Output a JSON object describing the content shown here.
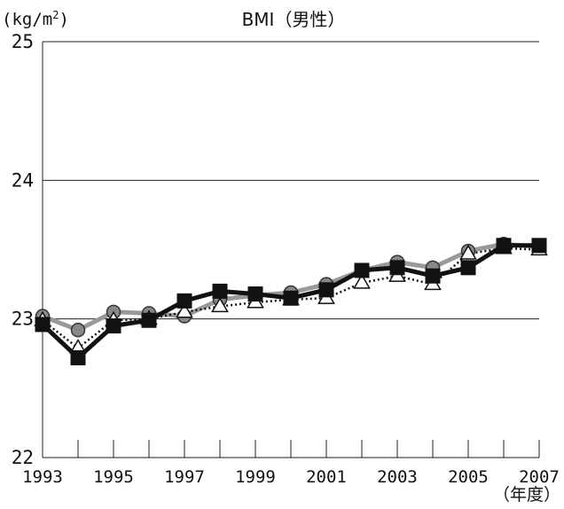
{
  "chart_data": {
    "type": "line",
    "title": "BMI（男性）",
    "ylabel": "(kg/m2)",
    "ylabel_base": "(kg/m",
    "ylabel_sup": "2",
    "ylabel_close": ")",
    "xlabel": "（年度）",
    "x": [
      1993,
      1994,
      1995,
      1996,
      1997,
      1998,
      1999,
      2000,
      2001,
      2002,
      2003,
      2004,
      2005,
      2006,
      2007
    ],
    "x_tick_labels": [
      "1993",
      "1995",
      "1997",
      "1999",
      "2001",
      "2003",
      "2005",
      "2007"
    ],
    "y_tick_labels": [
      "22",
      "23",
      "24",
      "25"
    ],
    "ylim": [
      22,
      25
    ],
    "grid": "horizontal",
    "series": [
      {
        "marker": "circle",
        "line_color": "#999999",
        "marker_fill": "#888888",
        "values": [
          23.02,
          22.92,
          23.05,
          23.04,
          23.02,
          23.14,
          23.17,
          23.19,
          23.25,
          23.35,
          23.41,
          23.37,
          23.49,
          23.54,
          23.52
        ]
      },
      {
        "marker": "triangle",
        "line_style": "dotted",
        "line_color": "#111111",
        "marker_fill": "#ffffff",
        "values": [
          22.99,
          22.79,
          22.99,
          23.0,
          23.05,
          23.09,
          23.12,
          23.14,
          23.15,
          23.26,
          23.31,
          23.25,
          23.47,
          23.51,
          23.5
        ]
      },
      {
        "marker": "square",
        "line_color": "#111111",
        "marker_fill": "#111111",
        "values": [
          22.96,
          22.72,
          22.95,
          22.99,
          23.13,
          23.2,
          23.18,
          23.15,
          23.21,
          23.35,
          23.37,
          23.31,
          23.37,
          23.53,
          23.53
        ]
      }
    ]
  }
}
